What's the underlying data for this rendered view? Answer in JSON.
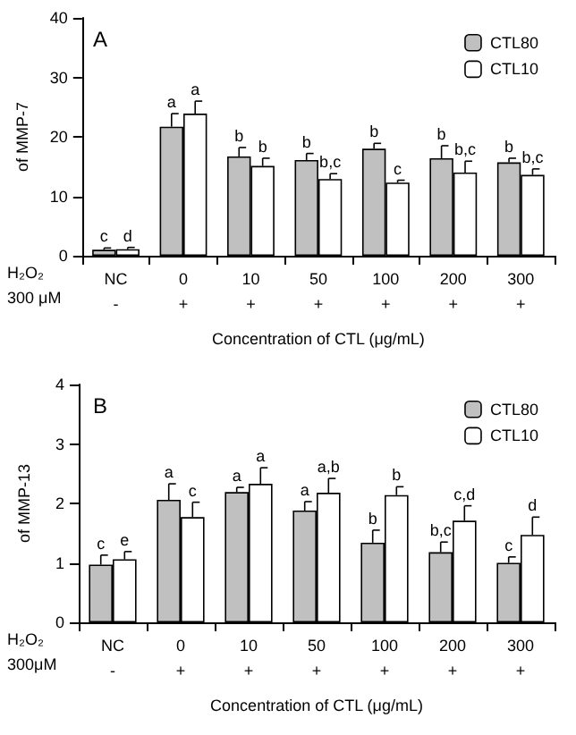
{
  "chart_data": [
    {
      "type": "bar",
      "title": "A",
      "xlabel": "Concentration of CTL (μg/mL)",
      "ylabel": "of MMP-7",
      "categories": [
        "NC\n-",
        "0\n+",
        "10\n+",
        "50\n+",
        "100\n+",
        "200\n+",
        "300\n+"
      ],
      "series": [
        {
          "name": "CTL80",
          "color": "#c0c0c0",
          "values": [
            1.0,
            21.7,
            16.7,
            16.1,
            18.0,
            16.4,
            15.7
          ],
          "errors": [
            0.3,
            2.2,
            1.5,
            1.1,
            0.9,
            2.1,
            0.7
          ],
          "value_labels": [
            "c",
            "a",
            "b",
            "b",
            "b",
            "b",
            "b"
          ]
        },
        {
          "name": "CTL10",
          "color": "#ffffff",
          "values": [
            1.1,
            23.9,
            15.1,
            12.9,
            12.3,
            14.0,
            13.6
          ],
          "errors": [
            0.3,
            2.1,
            1.3,
            0.9,
            0.4,
            1.9,
            1.0
          ],
          "value_labels": [
            "d",
            "a",
            "b",
            "b,c",
            "c",
            "b,c",
            "b,c"
          ]
        }
      ],
      "ylim": [
        0,
        40
      ],
      "yticks": [
        0,
        10,
        20,
        30,
        40
      ],
      "grid": false,
      "legend": "top right",
      "annotations": [
        "H₂O₂",
        "300 μM"
      ]
    },
    {
      "type": "bar",
      "title": "B",
      "xlabel": "Concentration of CTL (μg/mL)",
      "ylabel": "of MMP-13",
      "categories": [
        "NC\n-",
        "0\n+",
        "10\n+",
        "50\n+",
        "100\n+",
        "200\n+",
        "300\n+"
      ],
      "series": [
        {
          "name": "CTL80",
          "color": "#c0c0c0",
          "values": [
            0.97,
            2.06,
            2.19,
            1.88,
            1.34,
            1.18,
            1.0
          ],
          "errors": [
            0.16,
            0.27,
            0.08,
            0.15,
            0.21,
            0.17,
            0.1
          ],
          "value_labels": [
            "c",
            "a",
            "a",
            "a",
            "b",
            "b,c",
            "c"
          ]
        },
        {
          "name": "CTL10",
          "color": "#ffffff",
          "values": [
            1.06,
            1.77,
            2.33,
            2.18,
            2.14,
            1.71,
            1.47
          ],
          "errors": [
            0.13,
            0.25,
            0.27,
            0.24,
            0.14,
            0.25,
            0.3
          ],
          "value_labels": [
            "e",
            "c",
            "a",
            "a,b",
            "b",
            "c,d",
            "d"
          ]
        }
      ],
      "ylim": [
        0,
        4
      ],
      "yticks": [
        0,
        1,
        2,
        3,
        4
      ],
      "grid": false,
      "legend": "top right",
      "annotations": [
        "H₂O₂",
        "300μM"
      ]
    }
  ]
}
